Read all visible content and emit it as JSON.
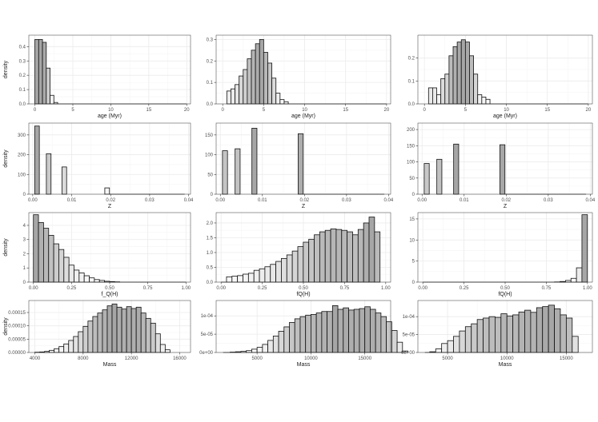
{
  "style": {
    "panel_border": "#333333",
    "grid_major": "#ebebeb",
    "grid_minor": "#f5f5f5",
    "bar_stroke": "#111111",
    "fill_light": "#ffffff",
    "fill_dark": "#a6a6a6"
  },
  "chart_data": [
    {
      "type": "bar",
      "row": 0,
      "col": 0,
      "xlabel": "age (Myr)",
      "ylabel": "density",
      "xlim": [
        -0.8,
        20.5
      ],
      "ylim": [
        0,
        0.48
      ],
      "xticks": [
        {
          "v": 0,
          "label": "0"
        },
        {
          "v": 5,
          "label": "5"
        },
        {
          "v": 10,
          "label": "10"
        },
        {
          "v": 15,
          "label": "15"
        },
        {
          "v": 20,
          "label": "20"
        }
      ],
      "yticks": [
        {
          "v": 0,
          "label": "0.0"
        },
        {
          "v": 0.1,
          "label": "0.1"
        },
        {
          "v": 0.2,
          "label": "0.2"
        },
        {
          "v": 0.3,
          "label": "0.3"
        },
        {
          "v": 0.4,
          "label": "0.4"
        }
      ],
      "bin_start": 0,
      "bin_width": 0.5,
      "values": [
        0.45,
        0.45,
        0.43,
        0.25,
        0.06,
        0.01
      ],
      "baseline_to": 20
    },
    {
      "type": "bar",
      "row": 0,
      "col": 1,
      "xlabel": "age (Myr)",
      "ylabel": "",
      "xlim": [
        -0.8,
        20.5
      ],
      "ylim": [
        0,
        0.32
      ],
      "xticks": [
        {
          "v": 0,
          "label": "0"
        },
        {
          "v": 5,
          "label": "5"
        },
        {
          "v": 10,
          "label": "10"
        },
        {
          "v": 15,
          "label": "15"
        },
        {
          "v": 20,
          "label": "20"
        }
      ],
      "yticks": [
        {
          "v": 0,
          "label": "0.0"
        },
        {
          "v": 0.1,
          "label": "0.1"
        },
        {
          "v": 0.2,
          "label": "0.2"
        },
        {
          "v": 0.3,
          "label": "0.3"
        }
      ],
      "bin_start": 0.5,
      "bin_width": 0.5,
      "values": [
        0.06,
        0.07,
        0.09,
        0.13,
        0.16,
        0.21,
        0.25,
        0.28,
        0.3,
        0.24,
        0.19,
        0.12,
        0.05,
        0.02,
        0.01
      ],
      "baseline_to": 20
    },
    {
      "type": "bar",
      "row": 0,
      "col": 2,
      "xlabel": "age (Myr)",
      "ylabel": "",
      "xlim": [
        -0.8,
        20.5
      ],
      "ylim": [
        0,
        0.3
      ],
      "xticks": [
        {
          "v": 0,
          "label": "0"
        },
        {
          "v": 5,
          "label": "5"
        },
        {
          "v": 10,
          "label": "10"
        },
        {
          "v": 15,
          "label": "15"
        },
        {
          "v": 20,
          "label": "20"
        }
      ],
      "yticks": [
        {
          "v": 0,
          "label": "0.0"
        },
        {
          "v": 0.1,
          "label": "0.1"
        },
        {
          "v": 0.2,
          "label": "0.2"
        }
      ],
      "bin_start": 0.5,
      "bin_width": 0.5,
      "values": [
        0.07,
        0.07,
        0.04,
        0.11,
        0.13,
        0.21,
        0.25,
        0.27,
        0.28,
        0.27,
        0.21,
        0.13,
        0.04,
        0.03,
        0.02
      ],
      "baseline_to": 20
    },
    {
      "type": "bar",
      "row": 1,
      "col": 0,
      "xlabel": "Z",
      "ylabel": "density",
      "xlim": [
        -0.001,
        0.0405
      ],
      "ylim": [
        0,
        360
      ],
      "xticks": [
        {
          "v": 0.0,
          "label": "0.00"
        },
        {
          "v": 0.01,
          "label": "0.01"
        },
        {
          "v": 0.02,
          "label": "0.02"
        },
        {
          "v": 0.03,
          "label": "0.03"
        },
        {
          "v": 0.04,
          "label": "0.04"
        }
      ],
      "yticks": [
        {
          "v": 0,
          "label": "0"
        },
        {
          "v": 100,
          "label": "100"
        },
        {
          "v": 200,
          "label": "200"
        },
        {
          "v": 300,
          "label": "300"
        }
      ],
      "bin_start": 0.0005,
      "bin_width": 0.0012,
      "values": [
        {
          "x": 0.0005,
          "v": 345
        },
        {
          "x": 0.0035,
          "v": 205
        },
        {
          "x": 0.0075,
          "v": 138
        },
        {
          "x": 0.0185,
          "v": 32
        }
      ],
      "baseline_to": 0.039
    },
    {
      "type": "bar",
      "row": 1,
      "col": 1,
      "xlabel": "Z",
      "ylabel": "",
      "xlim": [
        -0.001,
        0.0405
      ],
      "ylim": [
        0,
        180
      ],
      "xticks": [
        {
          "v": 0.0,
          "label": "0.00"
        },
        {
          "v": 0.01,
          "label": "0.01"
        },
        {
          "v": 0.02,
          "label": "0.02"
        },
        {
          "v": 0.03,
          "label": "0.03"
        },
        {
          "v": 0.04,
          "label": "0.04"
        }
      ],
      "yticks": [
        {
          "v": 0,
          "label": "0"
        },
        {
          "v": 50,
          "label": "50"
        },
        {
          "v": 100,
          "label": "100"
        },
        {
          "v": 150,
          "label": "150"
        }
      ],
      "bin_start": 0.0005,
      "bin_width": 0.0012,
      "values": [
        {
          "x": 0.0005,
          "v": 110
        },
        {
          "x": 0.0035,
          "v": 115
        },
        {
          "x": 0.0075,
          "v": 167
        },
        {
          "x": 0.0185,
          "v": 153
        }
      ],
      "baseline_to": 0.039
    },
    {
      "type": "bar",
      "row": 1,
      "col": 2,
      "xlabel": "Z",
      "ylabel": "",
      "xlim": [
        -0.001,
        0.0405
      ],
      "ylim": [
        0,
        220
      ],
      "xticks": [
        {
          "v": 0.0,
          "label": "0.00"
        },
        {
          "v": 0.01,
          "label": "0.01"
        },
        {
          "v": 0.02,
          "label": "0.02"
        },
        {
          "v": 0.03,
          "label": "0.03"
        },
        {
          "v": 0.04,
          "label": "0.04"
        }
      ],
      "yticks": [
        {
          "v": 0,
          "label": "0"
        },
        {
          "v": 50,
          "label": "50"
        },
        {
          "v": 100,
          "label": "100"
        },
        {
          "v": 150,
          "label": "150"
        },
        {
          "v": 200,
          "label": "200"
        }
      ],
      "bin_start": 0.0005,
      "bin_width": 0.0012,
      "values": [
        {
          "x": 0.0005,
          "v": 95
        },
        {
          "x": 0.0035,
          "v": 108
        },
        {
          "x": 0.0075,
          "v": 155
        },
        {
          "x": 0.0185,
          "v": 153
        }
      ],
      "baseline_to": 0.039
    },
    {
      "type": "bar",
      "row": 2,
      "col": 0,
      "xlabel": "f_Q(H)",
      "ylabel": "density",
      "xlim": [
        -0.03,
        1.03
      ],
      "ylim": [
        0,
        4.9
      ],
      "xticks": [
        {
          "v": 0,
          "label": "0.00"
        },
        {
          "v": 0.25,
          "label": "0.25"
        },
        {
          "v": 0.5,
          "label": "0.50"
        },
        {
          "v": 0.75,
          "label": "0.75"
        },
        {
          "v": 1,
          "label": "1.00"
        }
      ],
      "yticks": [
        {
          "v": 0,
          "label": "0"
        },
        {
          "v": 1,
          "label": "1"
        },
        {
          "v": 2,
          "label": "2"
        },
        {
          "v": 3,
          "label": "3"
        },
        {
          "v": 4,
          "label": "4"
        }
      ],
      "bin_start": 0.0,
      "bin_width": 0.0333,
      "values": [
        4.75,
        4.2,
        3.8,
        3.3,
        2.7,
        2.3,
        1.75,
        1.2,
        0.85,
        0.65,
        0.45,
        0.3,
        0.18,
        0.12,
        0.06,
        0.04,
        0.02
      ],
      "baseline_to": 1.0
    },
    {
      "type": "bar",
      "row": 2,
      "col": 1,
      "xlabel": "fQ(H)",
      "ylabel": "",
      "xlim": [
        -0.03,
        1.03
      ],
      "ylim": [
        0,
        2.35
      ],
      "xticks": [
        {
          "v": 0,
          "label": "0.00"
        },
        {
          "v": 0.25,
          "label": "0.25"
        },
        {
          "v": 0.5,
          "label": "0.50"
        },
        {
          "v": 0.75,
          "label": "0.75"
        },
        {
          "v": 1,
          "label": "1.00"
        }
      ],
      "yticks": [
        {
          "v": 0,
          "label": "0.0"
        },
        {
          "v": 0.5,
          "label": "0.5"
        },
        {
          "v": 1,
          "label": "1.0"
        },
        {
          "v": 1.5,
          "label": "1.5"
        },
        {
          "v": 2,
          "label": "2.0"
        }
      ],
      "bin_start": 0.033,
      "bin_width": 0.0333,
      "values": [
        0.18,
        0.2,
        0.22,
        0.27,
        0.3,
        0.4,
        0.45,
        0.52,
        0.6,
        0.7,
        0.8,
        0.92,
        1.05,
        1.2,
        1.35,
        1.45,
        1.6,
        1.7,
        1.75,
        1.8,
        1.78,
        1.75,
        1.7,
        1.6,
        1.78,
        2.0,
        2.2,
        1.7
      ],
      "baseline_to": 0.033
    },
    {
      "type": "bar",
      "row": 2,
      "col": 2,
      "xlabel": "fQ(H)",
      "ylabel": "",
      "xlim": [
        -0.03,
        1.03
      ],
      "ylim": [
        0,
        16.5
      ],
      "xticks": [
        {
          "v": 0,
          "label": "0.00"
        },
        {
          "v": 0.25,
          "label": "0.25"
        },
        {
          "v": 0.5,
          "label": "0.50"
        },
        {
          "v": 0.75,
          "label": "0.75"
        },
        {
          "v": 1,
          "label": "1.00"
        }
      ],
      "yticks": [
        {
          "v": 0,
          "label": "0"
        },
        {
          "v": 5,
          "label": "5"
        },
        {
          "v": 10,
          "label": "10"
        },
        {
          "v": 15,
          "label": "15"
        }
      ],
      "bin_start": 0.8,
      "bin_width": 0.0333,
      "values": [
        0.05,
        0.15,
        0.4,
        0.9,
        3.4,
        16.0
      ],
      "baseline_to": 0.0
    },
    {
      "type": "bar",
      "row": 3,
      "col": 0,
      "xlabel": "Mass",
      "ylabel": "density",
      "xlim": [
        3500,
        16900
      ],
      "ylim": [
        0,
        0.000195
      ],
      "xticks": [
        {
          "v": 4000,
          "label": "4000"
        },
        {
          "v": 8000,
          "label": "8000"
        },
        {
          "v": 12000,
          "label": "12000"
        },
        {
          "v": 16000,
          "label": "16000"
        }
      ],
      "yticks": [
        {
          "v": 0,
          "label": "0.00000"
        },
        {
          "v": 5e-05,
          "label": "0.00005"
        },
        {
          "v": 0.0001,
          "label": "0.00010"
        },
        {
          "v": 0.00015,
          "label": "0.00015"
        }
      ],
      "bin_start": 4000,
      "bin_width": 400,
      "values": [
        1e-06,
        2e-06,
        4e-06,
        8e-06,
        1.4e-05,
        2.2e-05,
        3.2e-05,
        4.5e-05,
        6e-05,
        7.8e-05,
        9.8e-05,
        0.000118,
        0.000135,
        0.000148,
        0.00016,
        0.000175,
        0.000182,
        0.00017,
        0.000163,
        0.000172,
        0.000165,
        0.00017,
        0.000148,
        0.000128,
        0.00011,
        7e-05,
        3e-05,
        1e-05
      ],
      "baseline_to": 4000
    },
    {
      "type": "bar",
      "row": 3,
      "col": 1,
      "xlabel": "Mass",
      "ylabel": "",
      "xlim": [
        1200,
        17400
      ],
      "ylim": [
        0,
        0.000142
      ],
      "xticks": [
        {
          "v": 5000,
          "label": "5000"
        },
        {
          "v": 10000,
          "label": "10000"
        },
        {
          "v": 15000,
          "label": "15000"
        }
      ],
      "yticks": [
        {
          "v": 0,
          "label": "0e+00"
        },
        {
          "v": 5e-05,
          "label": "5e-05"
        },
        {
          "v": 0.0001,
          "label": "1e-04"
        }
      ],
      "bin_start": 2500,
      "bin_width": 500,
      "values": [
        1e-06,
        2e-06,
        3e-06,
        5e-06,
        9e-06,
        1.4e-05,
        2.2e-05,
        3.3e-05,
        4.5e-05,
        5.8e-05,
        7e-05,
        8.2e-05,
        9.2e-05,
        9.8e-05,
        0.000102,
        0.000104,
        0.000108,
        0.000112,
        0.000112,
        0.000128,
        0.000118,
        0.000122,
        0.000116,
        0.000118,
        0.00012,
        0.000125,
        0.000118,
        0.000108,
        9.8e-05,
        8.4e-05,
        6e-05,
        2.8e-05,
        4e-06
      ],
      "baseline_to": 2500
    },
    {
      "type": "bar",
      "row": 3,
      "col": 2,
      "xlabel": "Mass",
      "ylabel": "",
      "xlim": [
        2500,
        17200
      ],
      "ylim": [
        0,
        0.000145
      ],
      "xticks": [
        {
          "v": 5000,
          "label": "5000"
        },
        {
          "v": 10000,
          "label": "10000"
        },
        {
          "v": 15000,
          "label": "15000"
        }
      ],
      "yticks": [
        {
          "v": 0,
          "label": "0e+00"
        },
        {
          "v": 5e-05,
          "label": "5e-05"
        },
        {
          "v": 0.0001,
          "label": "1e-04"
        }
      ],
      "bin_start": 3500,
      "bin_width": 500,
      "values": [
        2e-06,
        1e-05,
        2.5e-05,
        3.3e-05,
        4.5e-05,
        6e-05,
        7.2e-05,
        8e-05,
        9.2e-05,
        9.6e-05,
        0.0001,
        9.8e-05,
        0.000108,
        0.000102,
        0.000105,
        0.000113,
        0.000118,
        0.000112,
        0.000125,
        0.000128,
        0.000132,
        0.000122,
        0.000105,
        9.6e-05,
        4.5e-05
      ],
      "baseline_to": 3500
    }
  ]
}
